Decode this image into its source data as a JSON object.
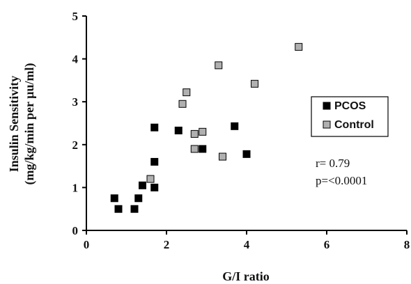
{
  "chart_data": {
    "type": "scatter",
    "title": "",
    "xlabel": "G/I ratio",
    "ylabel_line1": "Insulin Sensitivity",
    "ylabel_line2": "(mg/kg/min per µu/ml)",
    "xlim": [
      0,
      8
    ],
    "ylim": [
      0,
      5
    ],
    "xticks": [
      "0",
      "2",
      "4",
      "6",
      "8"
    ],
    "yticks": [
      "0",
      "1",
      "2",
      "3",
      "4",
      "5"
    ],
    "grid": false,
    "legend_position": "right",
    "series": [
      {
        "name": "PCOS",
        "color": "#000000",
        "points": [
          {
            "x": 0.7,
            "y": 0.75
          },
          {
            "x": 0.8,
            "y": 0.5
          },
          {
            "x": 1.2,
            "y": 0.5
          },
          {
            "x": 1.3,
            "y": 0.75
          },
          {
            "x": 1.4,
            "y": 1.05
          },
          {
            "x": 1.7,
            "y": 1.0
          },
          {
            "x": 1.7,
            "y": 1.6
          },
          {
            "x": 1.7,
            "y": 2.4
          },
          {
            "x": 2.3,
            "y": 2.33
          },
          {
            "x": 2.9,
            "y": 1.9
          },
          {
            "x": 3.7,
            "y": 2.43
          },
          {
            "x": 4.0,
            "y": 1.78
          }
        ]
      },
      {
        "name": "Control",
        "color": "#b0b0b0",
        "points": [
          {
            "x": 1.6,
            "y": 1.2
          },
          {
            "x": 2.4,
            "y": 2.95
          },
          {
            "x": 2.5,
            "y": 3.22
          },
          {
            "x": 2.7,
            "y": 2.25
          },
          {
            "x": 2.7,
            "y": 1.9
          },
          {
            "x": 2.9,
            "y": 2.3
          },
          {
            "x": 3.3,
            "y": 3.85
          },
          {
            "x": 3.4,
            "y": 1.72
          },
          {
            "x": 4.2,
            "y": 3.42
          },
          {
            "x": 5.3,
            "y": 4.28
          }
        ]
      }
    ],
    "annotations": [
      "r= 0.79",
      "p=<0.0001"
    ]
  }
}
